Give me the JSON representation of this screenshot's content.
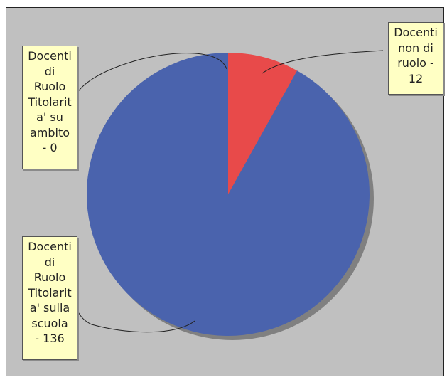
{
  "chart_data": {
    "type": "pie",
    "title": "",
    "slices": [
      {
        "label": "Docenti di Ruolo Titolarità su ambito - 0",
        "display": "Docenti\ndi\nRuolo\nTitolarit\na' su\nambito\n- 0",
        "value": 0,
        "color": "#4a63ad"
      },
      {
        "label": "Docenti non di ruolo - 12",
        "display": "Docenti\nnon di\nruolo -\n12",
        "value": 12,
        "color": "#e84a4a"
      },
      {
        "label": "Docenti di Ruolo Titolarità sulla scuola - 136",
        "display": "Docenti\ndi\nRuolo\nTitolarit\na' sulla\nscuola\n- 136",
        "value": 136,
        "color": "#4a63ad"
      }
    ],
    "colors": {
      "background": "#c0c0c0",
      "label_bg": "#ffffc4",
      "shadow": "#808080"
    }
  }
}
